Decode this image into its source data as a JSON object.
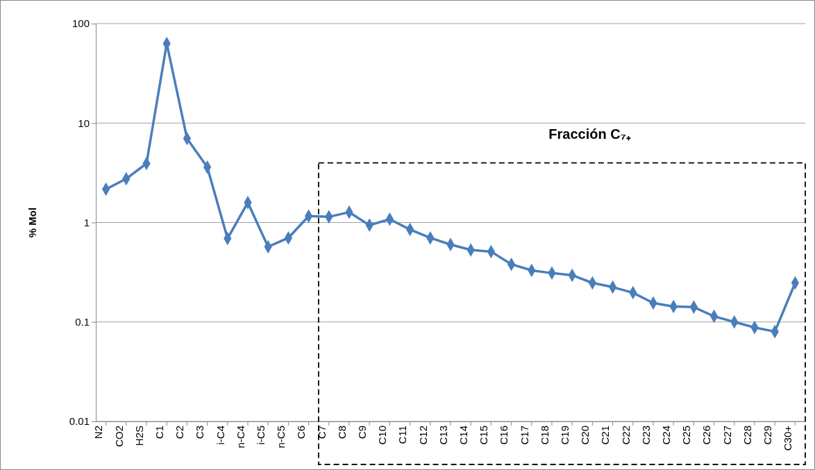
{
  "chart_data": {
    "type": "line",
    "ylabel": "% Mol",
    "log": "y",
    "ylim": [
      0.01,
      100
    ],
    "yticks": [
      0.01,
      0.1,
      1,
      10,
      100
    ],
    "grid": "y",
    "marker": "diamond",
    "line_style": "solid",
    "categories": [
      "N2",
      "CO2",
      "H2S",
      "C1",
      "C2",
      "C3",
      "i-C4",
      "n-C4",
      "i-C5",
      "n-C5",
      "C6",
      "C7",
      "C8",
      "C9",
      "C10",
      "C11",
      "C12",
      "C13",
      "C14",
      "C15",
      "C16",
      "C17",
      "C18",
      "C19",
      "C20",
      "C21",
      "C22",
      "C23",
      "C24",
      "C25",
      "C26",
      "C27",
      "C28",
      "C29",
      "C30+"
    ],
    "series": [
      {
        "color": "#4a7ebb",
        "values": [
          2.16,
          2.75,
          3.92,
          63,
          7.0,
          3.6,
          0.69,
          1.59,
          0.57,
          0.7,
          1.16,
          1.14,
          1.27,
          0.94,
          1.08,
          0.85,
          0.7,
          0.6,
          0.53,
          0.51,
          0.38,
          0.33,
          0.31,
          0.295,
          0.247,
          0.224,
          0.197,
          0.155,
          0.143,
          0.141,
          0.114,
          0.1,
          0.088,
          0.08,
          0.247
        ]
      }
    ],
    "annotations": [
      "Fracción C₇₊"
    ]
  }
}
